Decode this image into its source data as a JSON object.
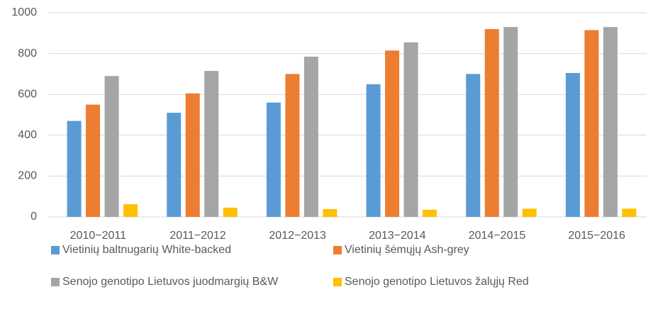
{
  "chart_data": {
    "type": "bar",
    "categories": [
      "2010−2011",
      "2011−2012",
      "2012−2013",
      "2013−2014",
      "2014−2015",
      "2015−2016"
    ],
    "series": [
      {
        "name": "Vietinių baltnugarių White-backed",
        "color": "#5b9bd5",
        "values": [
          470,
          510,
          560,
          650,
          700,
          705
        ]
      },
      {
        "name": "Vietinių šėmųjų Ash-grey",
        "color": "#ed7d31",
        "values": [
          550,
          605,
          700,
          815,
          920,
          915
        ]
      },
      {
        "name": "Senojo genotipo Lietuvos juodmargių B&W",
        "color": "#a5a5a5",
        "values": [
          690,
          715,
          785,
          855,
          930,
          930
        ]
      },
      {
        "name": "Senojo genotipo Lietuvos žalųjų Red",
        "color": "#ffc000",
        "values": [
          62,
          45,
          38,
          35,
          40,
          40
        ]
      }
    ],
    "ylim": [
      0,
      1000
    ],
    "yticks": [
      0,
      200,
      400,
      600,
      800,
      1000
    ],
    "grid": true,
    "legend": "bottom"
  }
}
